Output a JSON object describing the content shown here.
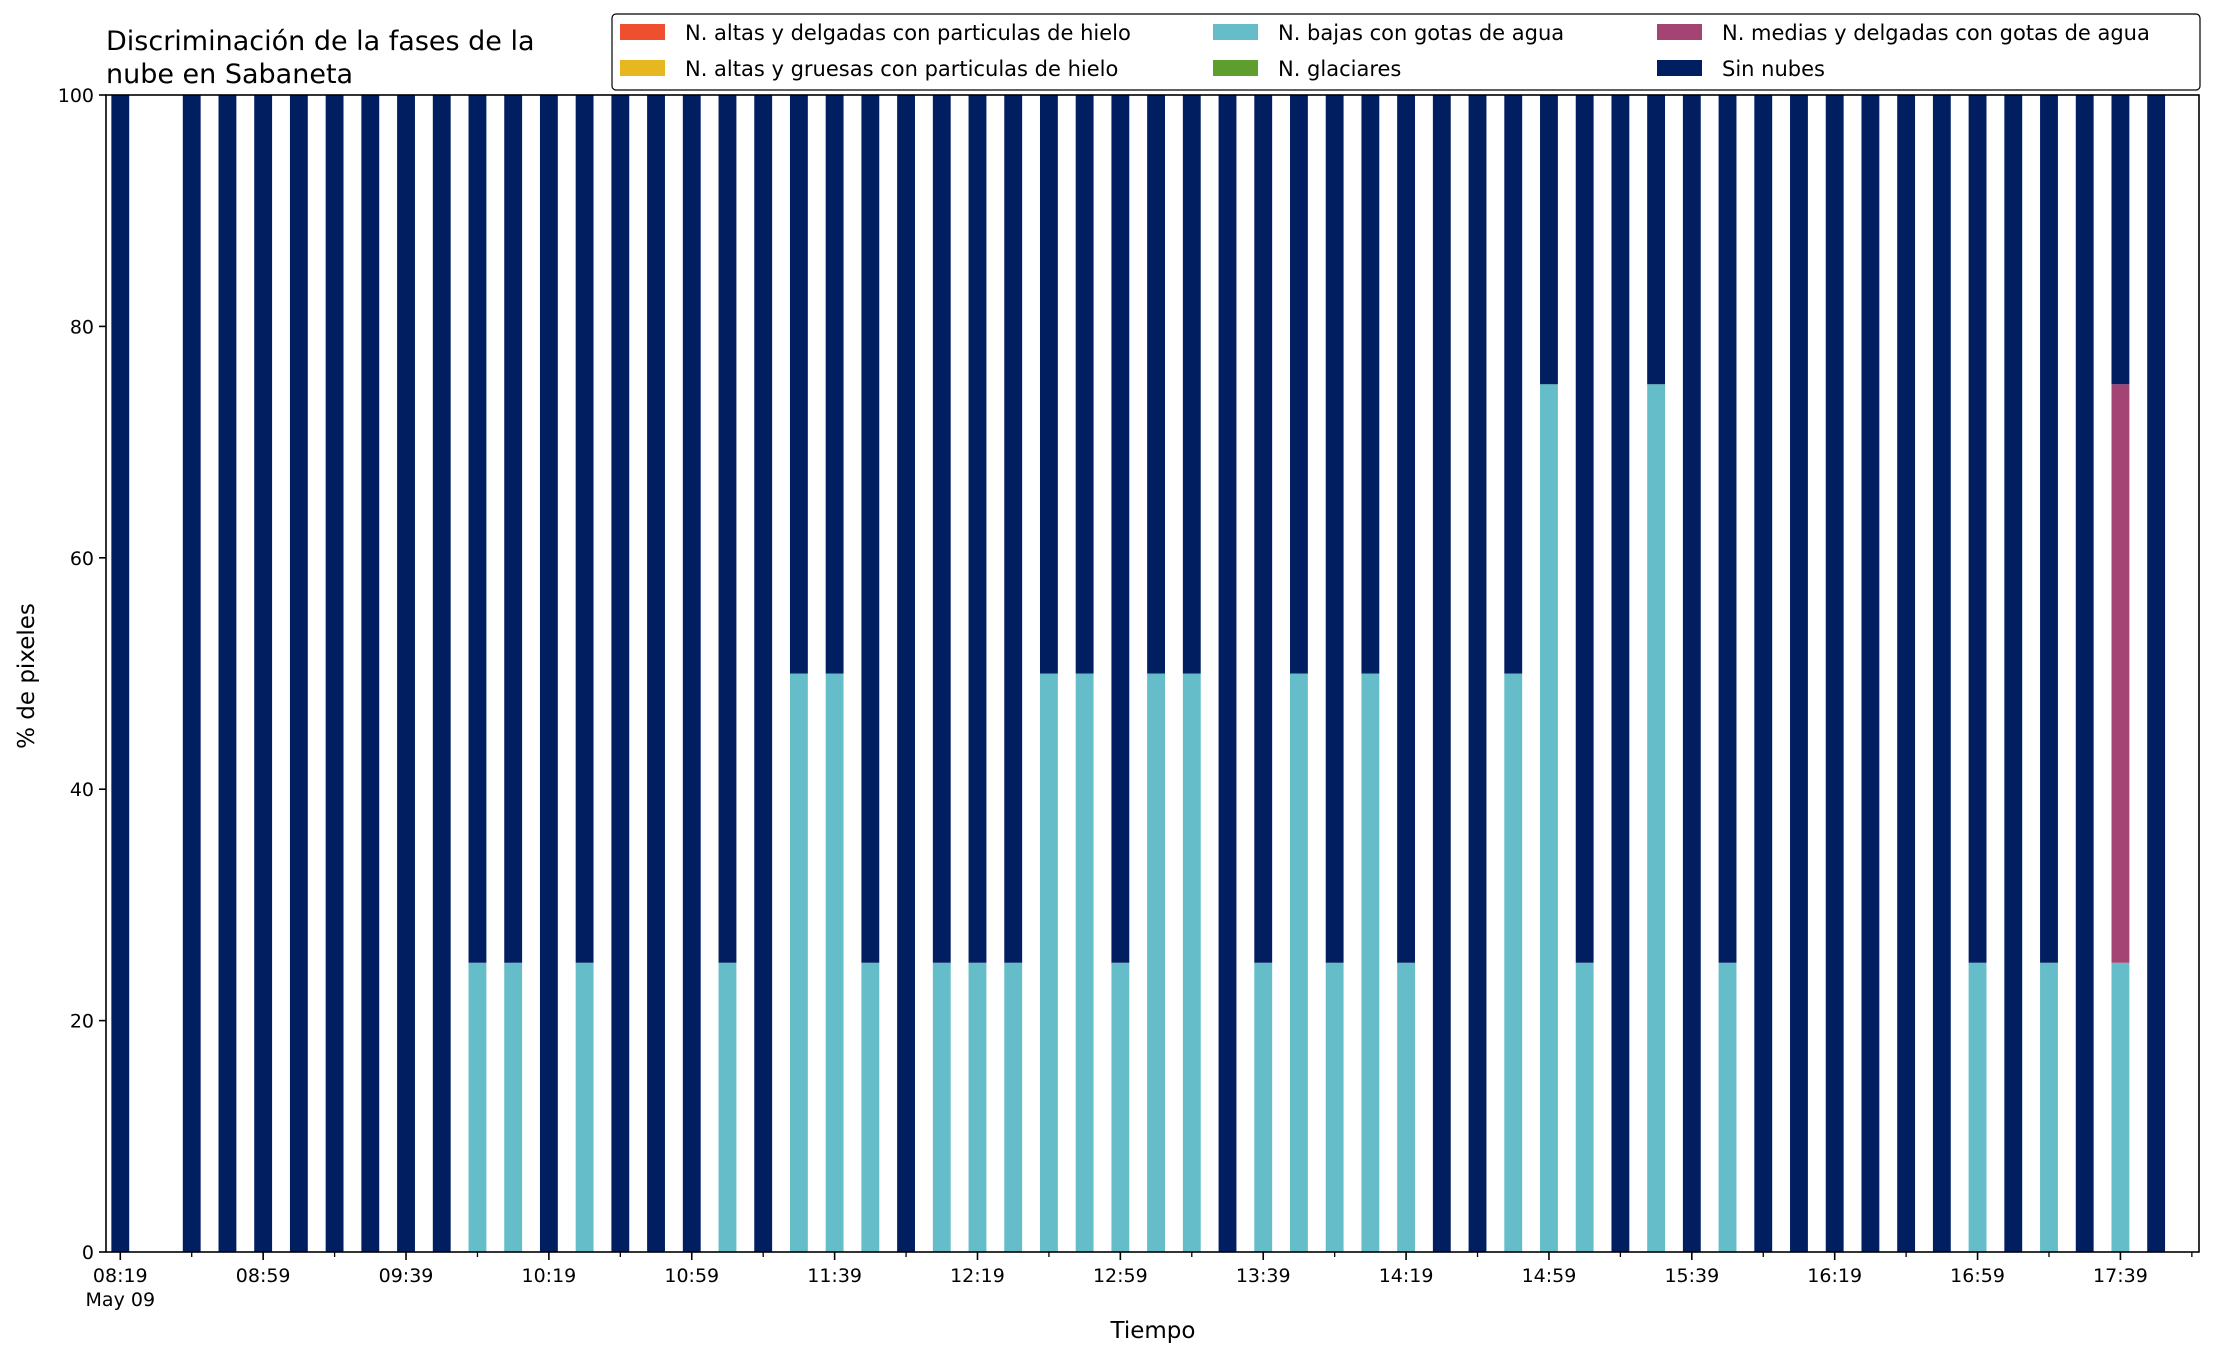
{
  "chart_data": {
    "type": "bar",
    "stacked": true,
    "title": [
      "Discriminación de la fases de la",
      "nube en Sabaneta"
    ],
    "xlabel": "Tiempo",
    "ylabel": "% de pixeles",
    "ylim": [
      0,
      100
    ],
    "yticks": [
      0,
      20,
      40,
      60,
      80,
      100
    ],
    "xlim": [
      "2024-05-09 08:15",
      "2024-05-09 18:01"
    ],
    "bar_interval_minutes": 10,
    "x": [
      "08:19",
      "08:29",
      "08:39",
      "08:49",
      "08:59",
      "09:09",
      "09:19",
      "09:29",
      "09:39",
      "09:49",
      "09:59",
      "10:09",
      "10:19",
      "10:29",
      "10:39",
      "10:49",
      "10:59",
      "11:09",
      "11:19",
      "11:29",
      "11:39",
      "11:49",
      "11:59",
      "12:09",
      "12:19",
      "12:29",
      "12:39",
      "12:49",
      "12:59",
      "13:09",
      "13:19",
      "13:29",
      "13:39",
      "13:49",
      "13:59",
      "14:09",
      "14:19",
      "14:29",
      "14:39",
      "14:49",
      "14:59",
      "15:09",
      "15:19",
      "15:29",
      "15:39",
      "15:49",
      "15:59",
      "16:09",
      "16:19",
      "16:29",
      "16:39",
      "16:49",
      "16:59",
      "17:09",
      "17:19",
      "17:29",
      "17:39",
      "17:49"
    ],
    "x_major_ticks": [
      "08:19",
      "08:59",
      "09:39",
      "10:19",
      "10:59",
      "11:39",
      "12:19",
      "12:59",
      "13:39",
      "14:19",
      "14:59",
      "15:39",
      "16:19",
      "16:59",
      "17:39"
    ],
    "x_first_tick_sublabel": "May 09",
    "x_minor_tick_step_minutes": 20,
    "legend": {
      "placement": "top-right",
      "ncol": 3,
      "frame": true
    },
    "series": [
      {
        "name": "N. altas y delgadas con particulas de hielo",
        "color": "#ee4f2e",
        "values": [
          0,
          null,
          0,
          0,
          0,
          0,
          0,
          0,
          0,
          0,
          0,
          0,
          0,
          0,
          0,
          0,
          0,
          0,
          0,
          0,
          0,
          0,
          0,
          0,
          0,
          0,
          0,
          0,
          0,
          0,
          0,
          0,
          0,
          0,
          0,
          0,
          0,
          0,
          0,
          0,
          0,
          0,
          0,
          0,
          0,
          0,
          0,
          0,
          0,
          0,
          0,
          0,
          0,
          0,
          0,
          0,
          0,
          0
        ]
      },
      {
        "name": "N. altas y gruesas con particulas de hielo",
        "color": "#e6b71e",
        "values": [
          0,
          null,
          0,
          0,
          0,
          0,
          0,
          0,
          0,
          0,
          0,
          0,
          0,
          0,
          0,
          0,
          0,
          0,
          0,
          0,
          0,
          0,
          0,
          0,
          0,
          0,
          0,
          0,
          0,
          0,
          0,
          0,
          0,
          0,
          0,
          0,
          0,
          0,
          0,
          0,
          0,
          0,
          0,
          0,
          0,
          0,
          0,
          0,
          0,
          0,
          0,
          0,
          0,
          0,
          0,
          0,
          0,
          0
        ]
      },
      {
        "name": "N. bajas con gotas de agua",
        "color": "#65bdc9",
        "values": [
          0,
          null,
          0,
          0,
          0,
          0,
          0,
          0,
          0,
          0,
          25,
          25,
          0,
          25,
          0,
          0,
          0,
          25,
          0,
          50,
          50,
          25,
          0,
          25,
          25,
          25,
          50,
          50,
          25,
          50,
          50,
          0,
          25,
          50,
          25,
          50,
          25,
          0,
          0,
          50,
          75,
          25,
          0,
          75,
          0,
          25,
          0,
          0,
          0,
          0,
          0,
          0,
          25,
          0,
          25,
          0,
          25,
          0
        ]
      },
      {
        "name": "N. glaciares",
        "color": "#5e9e2e",
        "values": [
          0,
          null,
          0,
          0,
          0,
          0,
          0,
          0,
          0,
          0,
          0,
          0,
          0,
          0,
          0,
          0,
          0,
          0,
          0,
          0,
          0,
          0,
          0,
          0,
          0,
          0,
          0,
          0,
          0,
          0,
          0,
          0,
          0,
          0,
          0,
          0,
          0,
          0,
          0,
          0,
          0,
          0,
          0,
          0,
          0,
          0,
          0,
          0,
          0,
          0,
          0,
          0,
          0,
          0,
          0,
          0,
          0,
          0
        ]
      },
      {
        "name": "N. medias y delgadas con gotas de agua",
        "color": "#a44475",
        "values": [
          0,
          null,
          0,
          0,
          0,
          0,
          0,
          0,
          0,
          0,
          0,
          0,
          0,
          0,
          0,
          0,
          0,
          0,
          0,
          0,
          0,
          0,
          0,
          0,
          0,
          0,
          0,
          0,
          0,
          0,
          0,
          0,
          0,
          0,
          0,
          0,
          0,
          0,
          0,
          0,
          0,
          0,
          0,
          0,
          0,
          0,
          0,
          0,
          0,
          0,
          0,
          0,
          0,
          0,
          0,
          0,
          50,
          0
        ]
      },
      {
        "name": "Sin nubes",
        "color": "#001e60",
        "values": [
          100,
          null,
          100,
          100,
          100,
          100,
          100,
          100,
          100,
          100,
          75,
          75,
          100,
          75,
          100,
          100,
          100,
          75,
          100,
          50,
          50,
          75,
          100,
          75,
          75,
          75,
          50,
          50,
          75,
          50,
          50,
          100,
          75,
          50,
          75,
          50,
          75,
          100,
          100,
          50,
          25,
          75,
          100,
          25,
          100,
          75,
          100,
          100,
          100,
          100,
          100,
          100,
          75,
          100,
          75,
          100,
          25,
          100
        ]
      }
    ]
  }
}
